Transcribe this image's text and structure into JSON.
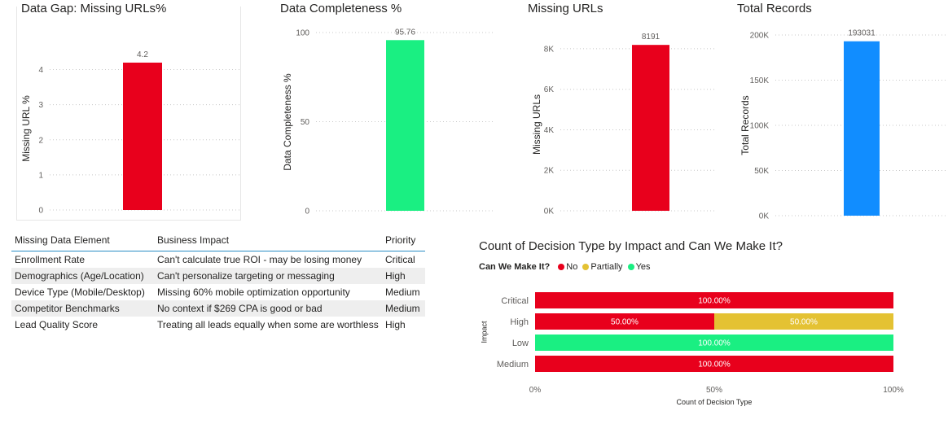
{
  "colors": {
    "red": "#E8001C",
    "green": "#1AEF82",
    "blue": "#118DFF",
    "yellow": "#E4C233"
  },
  "chart_data": [
    {
      "type": "bar",
      "title": "Data Gap: Missing URLs%",
      "ylabel": "Missing URL %",
      "categories": [
        ""
      ],
      "values": [
        4.2
      ],
      "data_labels": [
        "4.2"
      ],
      "ylim": [
        0,
        4.5
      ],
      "yticks": [
        0,
        1,
        2,
        3,
        4
      ],
      "ytick_labels": [
        "0",
        "1",
        "2",
        "3",
        "4"
      ],
      "color": "#E8001C"
    },
    {
      "type": "bar",
      "title": "Data Completeness %",
      "ylabel": "Data Completeness %",
      "categories": [
        ""
      ],
      "values": [
        95.76
      ],
      "data_labels": [
        "95.76"
      ],
      "ylim": [
        0,
        100
      ],
      "yticks": [
        0,
        50,
        100
      ],
      "ytick_labels": [
        "0",
        "50",
        "100"
      ],
      "color": "#1AEF82"
    },
    {
      "type": "bar",
      "title": "Missing URLs",
      "ylabel": "Missing URLs",
      "categories": [
        ""
      ],
      "values": [
        8191
      ],
      "data_labels": [
        "8191"
      ],
      "ylim": [
        0,
        8600
      ],
      "yticks": [
        0,
        2000,
        4000,
        6000,
        8000
      ],
      "ytick_labels": [
        "0K",
        "2K",
        "4K",
        "6K",
        "8K"
      ],
      "color": "#E8001C"
    },
    {
      "type": "bar",
      "title": "Total Records",
      "ylabel": "Total Records",
      "categories": [
        ""
      ],
      "values": [
        193031
      ],
      "data_labels": [
        "193031"
      ],
      "ylim": [
        0,
        200000
      ],
      "yticks": [
        0,
        50000,
        100000,
        150000,
        200000
      ],
      "ytick_labels": [
        "0K",
        "50K",
        "100K",
        "150K",
        "200K"
      ],
      "color": "#118DFF"
    },
    {
      "type": "bar",
      "orientation": "horizontal-100%-stacked",
      "title": "Count of Decision Type by Impact and Can We Make It?",
      "xlabel": "Count of Decision Type",
      "ylabel": "Impact",
      "categories": [
        "Critical",
        "High",
        "Low",
        "Medium"
      ],
      "series": [
        {
          "name": "No",
          "color": "#E8001C",
          "values": [
            100,
            50,
            0,
            100
          ],
          "labels": [
            "100.00%",
            "50.00%",
            "",
            "100.00%"
          ]
        },
        {
          "name": "Partially",
          "color": "#E4C233",
          "values": [
            0,
            50,
            0,
            0
          ],
          "labels": [
            "",
            "50.00%",
            "",
            ""
          ]
        },
        {
          "name": "Yes",
          "color": "#1AEF82",
          "values": [
            0,
            0,
            100,
            0
          ],
          "labels": [
            "",
            "",
            "100.00%",
            ""
          ]
        }
      ],
      "xticks": [
        0,
        50,
        100
      ],
      "xtick_labels": [
        "0%",
        "50%",
        "100%"
      ],
      "legend_title": "Can We Make It?",
      "legend_position": "top-left"
    }
  ],
  "table": {
    "columns": [
      "Missing Data Element",
      "Business Impact",
      "Priority"
    ],
    "rows": [
      [
        "Enrollment Rate",
        "Can't calculate true ROI - may be losing money",
        "Critical"
      ],
      [
        "Demographics (Age/Location)",
        "Can't personalize targeting or messaging",
        "High"
      ],
      [
        "Device Type (Mobile/Desktop)",
        "Missing 60% mobile optimization opportunity",
        "Medium"
      ],
      [
        "Competitor Benchmarks",
        "No context if $269 CPA is good or bad",
        "Medium"
      ],
      [
        "Lead Quality Score",
        "Treating all leads equally when some are worthless",
        "High"
      ]
    ]
  }
}
